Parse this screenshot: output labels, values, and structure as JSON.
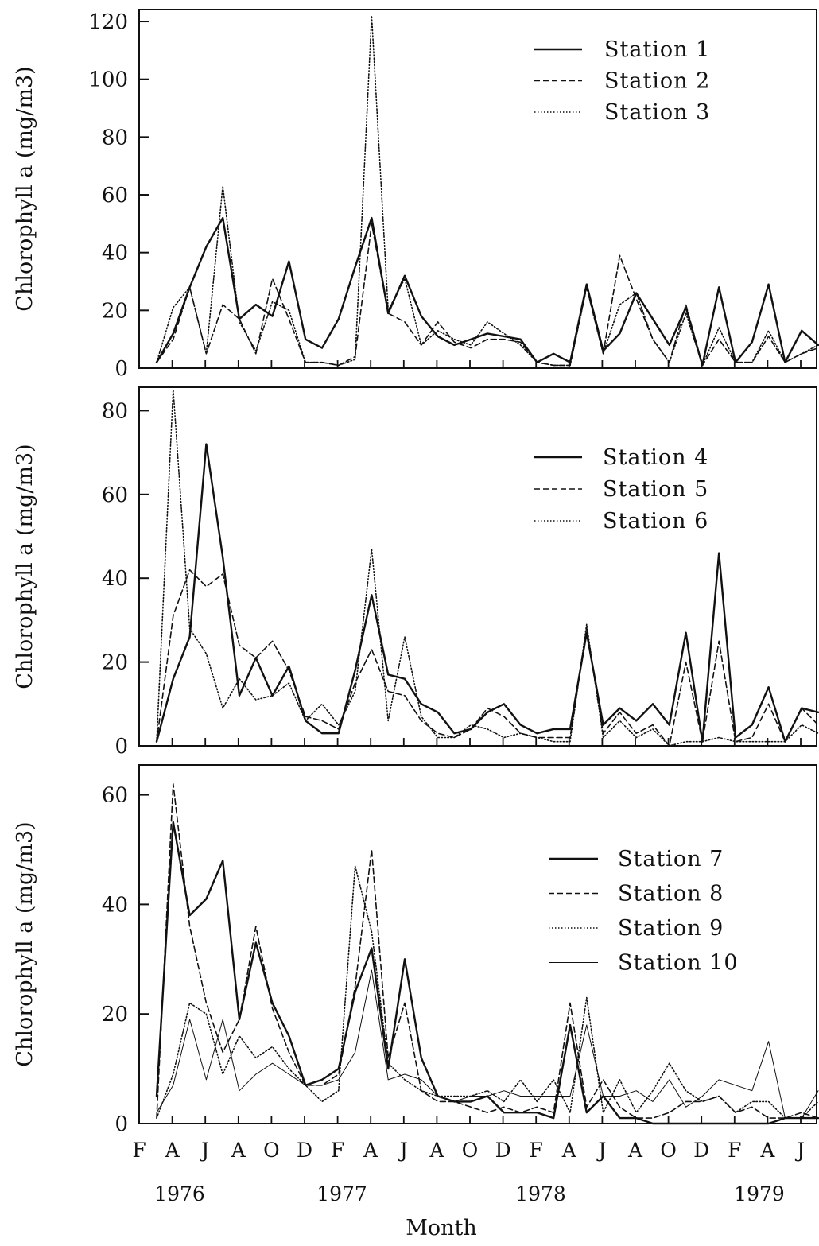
{
  "chart_data": [
    {
      "type": "line",
      "ylabel": "Chlorophyll a (mg/m3)",
      "ylim": [
        0,
        125
      ],
      "yticks": [
        0,
        20,
        40,
        60,
        80,
        100,
        120
      ],
      "legend_position": "top-right",
      "series": [
        {
          "name": "Station 1",
          "style": "solid-thick",
          "values": [
            2,
            12,
            28,
            42,
            52,
            17,
            22,
            18,
            37,
            10,
            7,
            17,
            35,
            52,
            19,
            32,
            18,
            11,
            8,
            10,
            12,
            11,
            10,
            2,
            5,
            2,
            29,
            6,
            12,
            26,
            17,
            8,
            21,
            1,
            28,
            2,
            9,
            29,
            2,
            13,
            8
          ]
        },
        {
          "name": "Station 2",
          "style": "dashed",
          "values": [
            2,
            10,
            28,
            5,
            22,
            17,
            5,
            31,
            17,
            2,
            2,
            1,
            4,
            50,
            19,
            16,
            8,
            16,
            9,
            7,
            10,
            10,
            9,
            2,
            1,
            1,
            28,
            5,
            39,
            24,
            10,
            2,
            22,
            1,
            10,
            2,
            2,
            11,
            2,
            5,
            7
          ]
        },
        {
          "name": "Station 3",
          "style": "dotted",
          "values": [
            2,
            21,
            28,
            5,
            63,
            16,
            6,
            23,
            20,
            2,
            2,
            1,
            3,
            122,
            20,
            31,
            8,
            13,
            10,
            8,
            16,
            12,
            8,
            2,
            1,
            1,
            28,
            5,
            22,
            26,
            10,
            2,
            19,
            1,
            14,
            2,
            2,
            13,
            2,
            5,
            8
          ]
        }
      ]
    },
    {
      "type": "line",
      "ylabel": "Chlorophyll a (mg/m3)",
      "ylim": [
        0,
        85
      ],
      "yticks": [
        0,
        20,
        40,
        60,
        80
      ],
      "legend_position": "top-right",
      "series": [
        {
          "name": "Station 4",
          "style": "solid-thick",
          "values": [
            1,
            16,
            26,
            72,
            45,
            12,
            21,
            12,
            19,
            6,
            3,
            3,
            18,
            36,
            17,
            16,
            10,
            8,
            3,
            4,
            8,
            10,
            5,
            3,
            4,
            4,
            27,
            5,
            9,
            6,
            10,
            5,
            27,
            1,
            46,
            2,
            5,
            14,
            1,
            9,
            8
          ]
        },
        {
          "name": "Station 5",
          "style": "dashed",
          "values": [
            1,
            31,
            42,
            38,
            41,
            24,
            21,
            25,
            18,
            7,
            6,
            4,
            15,
            23,
            13,
            12,
            6,
            3,
            2,
            4,
            9,
            7,
            3,
            2,
            2,
            2,
            28,
            3,
            8,
            3,
            5,
            0,
            20,
            1,
            25,
            1,
            2,
            10,
            1,
            9,
            5
          ]
        },
        {
          "name": "Station 6",
          "style": "dotted",
          "values": [
            1,
            85,
            28,
            22,
            9,
            16,
            11,
            12,
            15,
            6,
            10,
            5,
            13,
            47,
            6,
            26,
            7,
            2,
            2,
            5,
            4,
            2,
            3,
            2,
            1,
            1,
            29,
            2,
            6,
            2,
            4,
            0,
            1,
            1,
            2,
            1,
            1,
            1,
            1,
            5,
            3
          ]
        }
      ]
    },
    {
      "type": "line",
      "ylabel": "Chlorophyll a (mg/m3)",
      "ylim": [
        0,
        65
      ],
      "yticks": [
        0,
        20,
        40,
        60
      ],
      "legend_position": "right",
      "xlabel": "Month",
      "x_month_labels": [
        "F",
        "A",
        "J",
        "A",
        "O",
        "D",
        "F",
        "A",
        "J",
        "A",
        "O",
        "D",
        "F",
        "A",
        "J",
        "A",
        "O",
        "D",
        "F",
        "A",
        "J"
      ],
      "x_year_labels": [
        "1976",
        "1977",
        "1978",
        "1979"
      ],
      "series": [
        {
          "name": "Station 7",
          "style": "solid-thick",
          "values": [
            5,
            55,
            38,
            41,
            48,
            19,
            33,
            22,
            16,
            7,
            8,
            10,
            24,
            32,
            10,
            30,
            12,
            5,
            4,
            4,
            5,
            2,
            2,
            2,
            1,
            18,
            2,
            5,
            1,
            1,
            0,
            0,
            0,
            0,
            0,
            0,
            0,
            0,
            1,
            1,
            1
          ]
        },
        {
          "name": "Station 8",
          "style": "dashed",
          "values": [
            1,
            62,
            36,
            22,
            13,
            19,
            36,
            21,
            13,
            7,
            7,
            9,
            25,
            50,
            12,
            22,
            6,
            4,
            4,
            3,
            2,
            3,
            2,
            3,
            2,
            22,
            3,
            8,
            3,
            1,
            1,
            2,
            4,
            4,
            5,
            2,
            3,
            1,
            1,
            2,
            1
          ]
        },
        {
          "name": "Station 9",
          "style": "dotted",
          "values": [
            1,
            9,
            22,
            20,
            9,
            16,
            12,
            14,
            10,
            7,
            4,
            6,
            47,
            35,
            11,
            8,
            6,
            5,
            5,
            5,
            6,
            4,
            8,
            4,
            8,
            2,
            23,
            2,
            8,
            2,
            6,
            11,
            6,
            4,
            5,
            2,
            4,
            4,
            1,
            1,
            4
          ]
        },
        {
          "name": "Station 10",
          "style": "solid-thin",
          "values": [
            2,
            7,
            19,
            8,
            19,
            6,
            9,
            11,
            9,
            7,
            7,
            8,
            13,
            28,
            8,
            9,
            8,
            5,
            4,
            5,
            5,
            6,
            5,
            5,
            5,
            5,
            18,
            5,
            5,
            6,
            4,
            8,
            3,
            5,
            8,
            7,
            6,
            15,
            1,
            1,
            6
          ]
        }
      ]
    }
  ]
}
